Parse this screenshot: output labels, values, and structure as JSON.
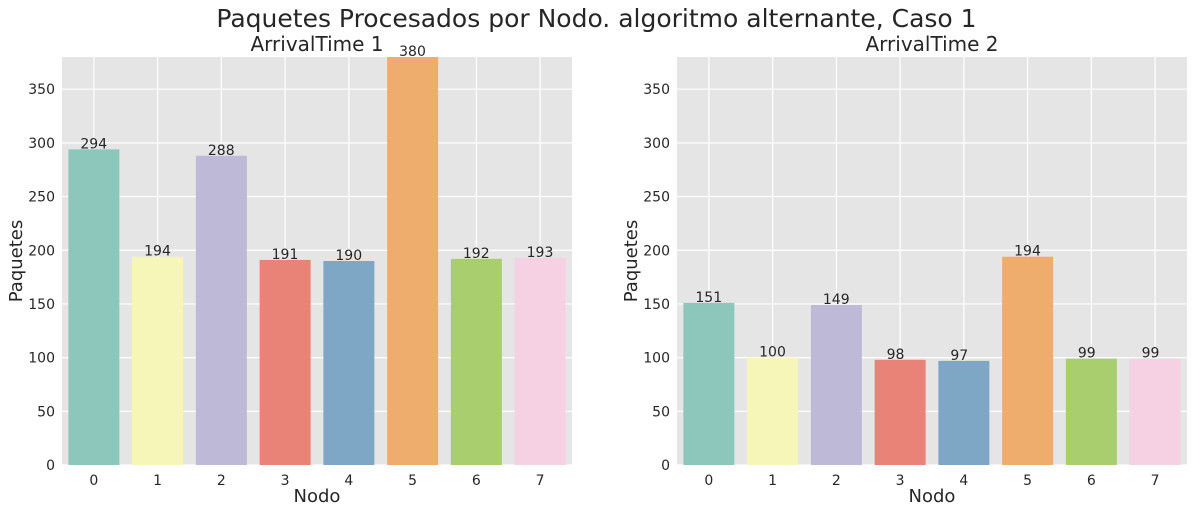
{
  "suptitle": "Paquetes Procesados por Nodo. algoritmo alternante, Caso 1",
  "colors": {
    "background": "#e5e5e5",
    "grid": "#ffffff",
    "text": "#262626",
    "palette": [
      "#8dc7bc",
      "#f5f6b8",
      "#bdb9d6",
      "#e98377",
      "#7ea7c5",
      "#eead6c",
      "#a9ce6e",
      "#f6d0e3"
    ]
  },
  "chart_data": [
    {
      "type": "bar",
      "title": "ArrivalTime 1",
      "xlabel": "Nodo",
      "ylabel": "Paquetes",
      "categories": [
        "0",
        "1",
        "2",
        "3",
        "4",
        "5",
        "6",
        "7"
      ],
      "values": [
        294,
        194,
        288,
        191,
        190,
        380,
        192,
        193
      ],
      "ylim": [
        0,
        380
      ],
      "yticks": [
        0,
        50,
        100,
        150,
        200,
        250,
        300,
        350
      ],
      "grid": true
    },
    {
      "type": "bar",
      "title": "ArrivalTime 2",
      "xlabel": "Nodo",
      "ylabel": "Paquetes",
      "categories": [
        "0",
        "1",
        "2",
        "3",
        "4",
        "5",
        "6",
        "7"
      ],
      "values": [
        151,
        100,
        149,
        98,
        97,
        194,
        99,
        99
      ],
      "ylim": [
        0,
        380
      ],
      "yticks": [
        0,
        50,
        100,
        150,
        200,
        250,
        300,
        350
      ],
      "grid": true
    }
  ]
}
